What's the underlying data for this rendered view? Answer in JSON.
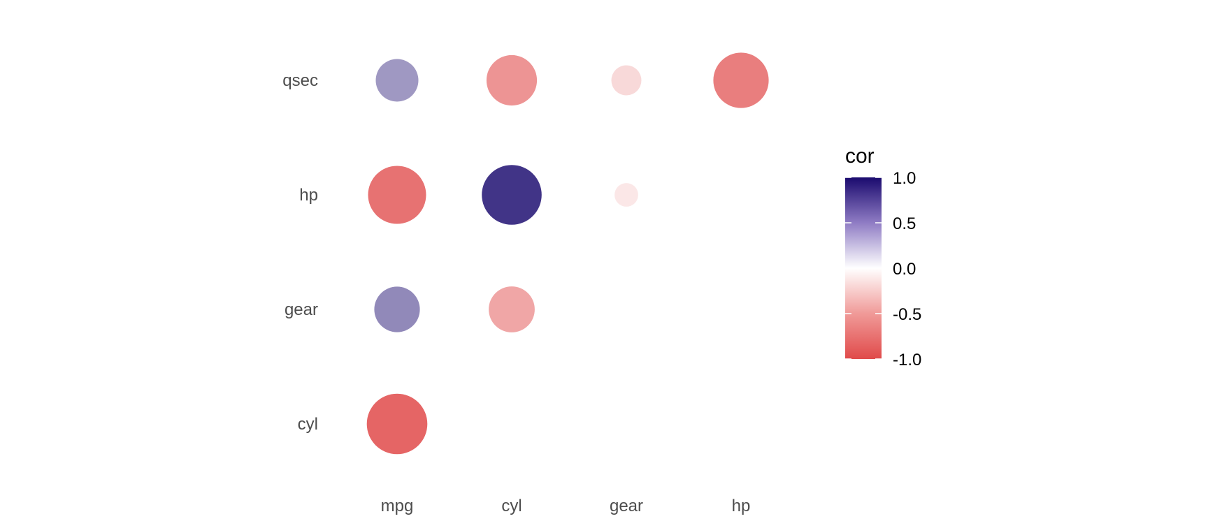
{
  "chart_data": {
    "type": "scatter",
    "title": "",
    "xlabel": "",
    "ylabel": "",
    "x_categories": [
      "mpg",
      "cyl",
      "gear",
      "hp"
    ],
    "y_categories": [
      "cyl",
      "gear",
      "hp",
      "qsec"
    ],
    "points": [
      {
        "x": "mpg",
        "y": "qsec",
        "cor": 0.42
      },
      {
        "x": "cyl",
        "y": "qsec",
        "cor": -0.59
      },
      {
        "x": "gear",
        "y": "qsec",
        "cor": -0.21
      },
      {
        "x": "hp",
        "y": "qsec",
        "cor": -0.71
      },
      {
        "x": "mpg",
        "y": "hp",
        "cor": -0.78
      },
      {
        "x": "cyl",
        "y": "hp",
        "cor": 0.83
      },
      {
        "x": "gear",
        "y": "hp",
        "cor": -0.13
      },
      {
        "x": "mpg",
        "y": "gear",
        "cor": 0.48
      },
      {
        "x": "cyl",
        "y": "gear",
        "cor": -0.49
      },
      {
        "x": "mpg",
        "y": "cyl",
        "cor": -0.85
      }
    ],
    "legend": {
      "title": "cor",
      "placement": "right",
      "limits": [
        -1,
        1
      ],
      "ticks": [
        "1.0",
        "0.5",
        "0.0",
        "-0.5",
        "-1.0"
      ],
      "colors": {
        "high": "#1a0a6e",
        "mid": "#ffffff",
        "low": "#e04a4a"
      }
    },
    "grid": false
  }
}
